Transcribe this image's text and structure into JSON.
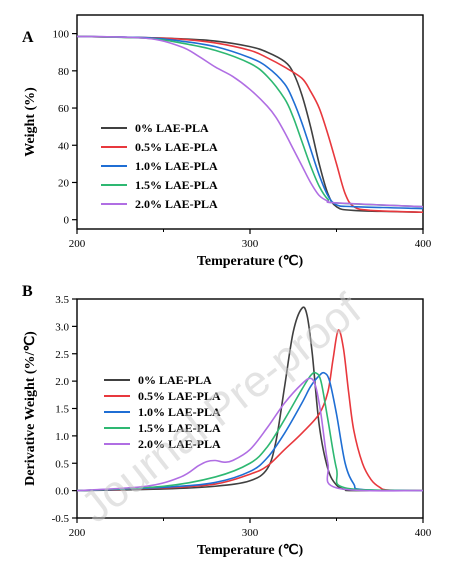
{
  "watermark": "Journal Pre-proof",
  "series_colors": [
    "#404040",
    "#e8383d",
    "#1f6ed4",
    "#2eb872",
    "#b06ee3"
  ],
  "chart_data": [
    {
      "type": "line",
      "panel_label": "A",
      "xlabel": "Temperature (℃)",
      "ylabel": "Weight (%)",
      "xlim": [
        200,
        400
      ],
      "ylim": [
        -5,
        110
      ],
      "x_ticks": [
        200,
        300,
        400
      ],
      "y_ticks": [
        0,
        20,
        40,
        60,
        80,
        100
      ],
      "grid": false,
      "legend": "center-left",
      "series": [
        {
          "name": "0% LAE-PLA",
          "x": [
            200,
            240,
            260,
            280,
            300,
            310,
            320,
            325,
            330,
            335,
            340,
            345,
            350,
            360,
            400
          ],
          "y": [
            98.5,
            97.8,
            97.2,
            96,
            93,
            90,
            85,
            79,
            67,
            50,
            30,
            14,
            7,
            5,
            4
          ]
        },
        {
          "name": "0.5% LAE-PLA",
          "x": [
            200,
            240,
            260,
            280,
            300,
            310,
            320,
            330,
            335,
            340,
            345,
            350,
            355,
            360,
            370,
            400
          ],
          "y": [
            98.5,
            97.8,
            97,
            95,
            91,
            87,
            82,
            76,
            69,
            60,
            46,
            30,
            14,
            7,
            5,
            4
          ]
        },
        {
          "name": "1.0% LAE-PLA",
          "x": [
            200,
            240,
            260,
            280,
            300,
            310,
            320,
            325,
            330,
            335,
            340,
            345,
            350,
            360,
            400
          ],
          "y": [
            98.5,
            97.8,
            96,
            93,
            87,
            82,
            73,
            64,
            52,
            38,
            24,
            13,
            8,
            7,
            6
          ]
        },
        {
          "name": "1.5% LAE-PLA",
          "x": [
            200,
            240,
            260,
            280,
            300,
            310,
            320,
            325,
            330,
            335,
            340,
            345,
            350,
            400
          ],
          "y": [
            98.5,
            97.5,
            95,
            91,
            84,
            77,
            65,
            55,
            42,
            29,
            18,
            11,
            9,
            7
          ]
        },
        {
          "name": "2.0% LAE-PLA",
          "x": [
            200,
            240,
            260,
            270,
            280,
            290,
            300,
            310,
            315,
            320,
            325,
            330,
            335,
            340,
            345,
            350,
            400
          ],
          "y": [
            98.5,
            97.5,
            93,
            88,
            82,
            77,
            70,
            61,
            55,
            47,
            38,
            29,
            20,
            13,
            10,
            9,
            7
          ]
        }
      ]
    },
    {
      "type": "line",
      "panel_label": "B",
      "xlabel": "Temperature (℃)",
      "ylabel": "Derivative Weight (%/℃)",
      "xlim": [
        200,
        400
      ],
      "ylim": [
        -0.5,
        3.5
      ],
      "x_ticks": [
        200,
        300,
        400
      ],
      "y_ticks": [
        -0.5,
        0.0,
        0.5,
        1.0,
        1.5,
        2.0,
        2.5,
        3.0,
        3.5
      ],
      "grid": false,
      "legend": "center-left",
      "series": [
        {
          "name": "0% LAE-PLA",
          "x": [
            200,
            250,
            280,
            300,
            310,
            315,
            320,
            325,
            330,
            333,
            336,
            340,
            345,
            350,
            355,
            360,
            400
          ],
          "y": [
            0,
            0.03,
            0.08,
            0.18,
            0.4,
            0.9,
            1.9,
            2.9,
            3.33,
            3.2,
            2.5,
            1.2,
            0.4,
            0.1,
            0.02,
            0,
            0
          ]
        },
        {
          "name": "0.5% LAE-PLA",
          "x": [
            200,
            250,
            280,
            300,
            310,
            320,
            330,
            340,
            345,
            348,
            351,
            354,
            357,
            360,
            365,
            370,
            375,
            380,
            400
          ],
          "y": [
            0,
            0.05,
            0.12,
            0.3,
            0.45,
            0.75,
            1.05,
            1.4,
            1.8,
            2.4,
            2.93,
            2.6,
            1.8,
            1.1,
            0.5,
            0.2,
            0.06,
            0.01,
            0
          ]
        },
        {
          "name": "1.0% LAE-PLA",
          "x": [
            200,
            250,
            280,
            300,
            310,
            320,
            330,
            335,
            340,
            343,
            346,
            350,
            355,
            360,
            365,
            400
          ],
          "y": [
            0,
            0.06,
            0.15,
            0.35,
            0.6,
            1.05,
            1.6,
            1.9,
            2.1,
            2.15,
            2.0,
            1.4,
            0.5,
            0.12,
            0.02,
            0
          ]
        },
        {
          "name": "1.5% LAE-PLA",
          "x": [
            200,
            250,
            280,
            300,
            310,
            320,
            330,
            335,
            338,
            341,
            345,
            350,
            355,
            400
          ],
          "y": [
            0,
            0.08,
            0.25,
            0.5,
            0.8,
            1.3,
            1.85,
            2.1,
            2.15,
            2.0,
            1.3,
            0.4,
            0.05,
            0
          ]
        },
        {
          "name": "2.0% LAE-PLA",
          "x": [
            200,
            240,
            260,
            270,
            275,
            280,
            285,
            290,
            300,
            310,
            320,
            330,
            335,
            338,
            341,
            345,
            350,
            400
          ],
          "y": [
            0,
            0.08,
            0.25,
            0.45,
            0.53,
            0.55,
            0.52,
            0.55,
            0.75,
            1.15,
            1.6,
            1.95,
            2.05,
            1.9,
            1.4,
            0.5,
            0.05,
            0
          ]
        }
      ]
    }
  ]
}
